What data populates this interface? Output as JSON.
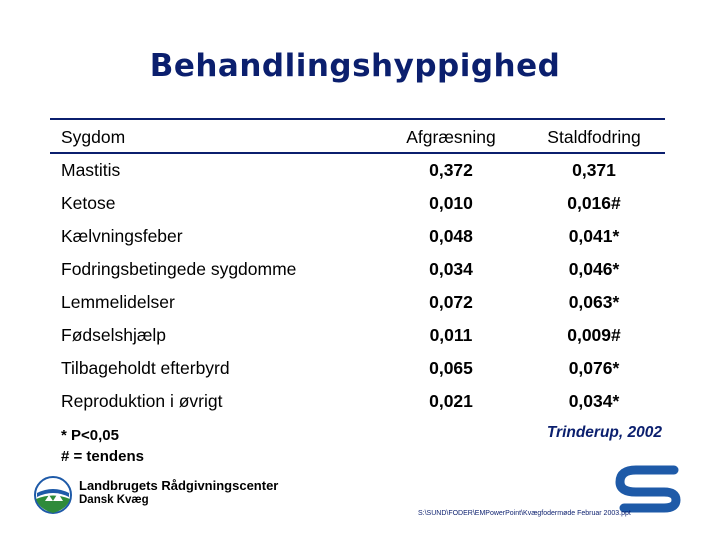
{
  "title": "Behandlingshyppighed",
  "table": {
    "headers": [
      "Sygdom",
      "Afgræsning",
      "Staldfodring"
    ],
    "rows": [
      {
        "sygdom": "Mastitis",
        "afgraesning": "0,372",
        "staldfodring": "0,371"
      },
      {
        "sygdom": "Ketose",
        "afgraesning": "0,010",
        "staldfodring": "0,016#"
      },
      {
        "sygdom": "Kælvningsfeber",
        "afgraesning": "0,048",
        "staldfodring": "0,041*"
      },
      {
        "sygdom": "Fodringsbetingede sygdomme",
        "afgraesning": "0,034",
        "staldfodring": "0,046*"
      },
      {
        "sygdom": "Lemmelidelser",
        "afgraesning": "0,072",
        "staldfodring": "0,063*"
      },
      {
        "sygdom": "Fødselshjælp",
        "afgraesning": "0,011",
        "staldfodring": "0,009#"
      },
      {
        "sygdom": "Tilbageholdt efterbyrd",
        "afgraesning": "0,065",
        "staldfodring": "0,076*"
      },
      {
        "sygdom": "Reproduktion i øvrigt",
        "afgraesning": "0,021",
        "staldfodring": "0,034*"
      }
    ]
  },
  "footnotes": [
    "* P<0,05",
    "# = tendens"
  ],
  "source": "Trinderup, 2002",
  "organization": {
    "name": "Landbrugets Rådgivningscenter",
    "sub": "Dansk Kvæg"
  },
  "file_path": "S:\\SUND\\FODER\\EMPowerPoint\\Kvægfodermøde Februar 2003.ppt",
  "colors": {
    "accent": "#0b1f6e",
    "logo_blue": "#1e5aa8",
    "logo_green": "#2e8b3a"
  }
}
